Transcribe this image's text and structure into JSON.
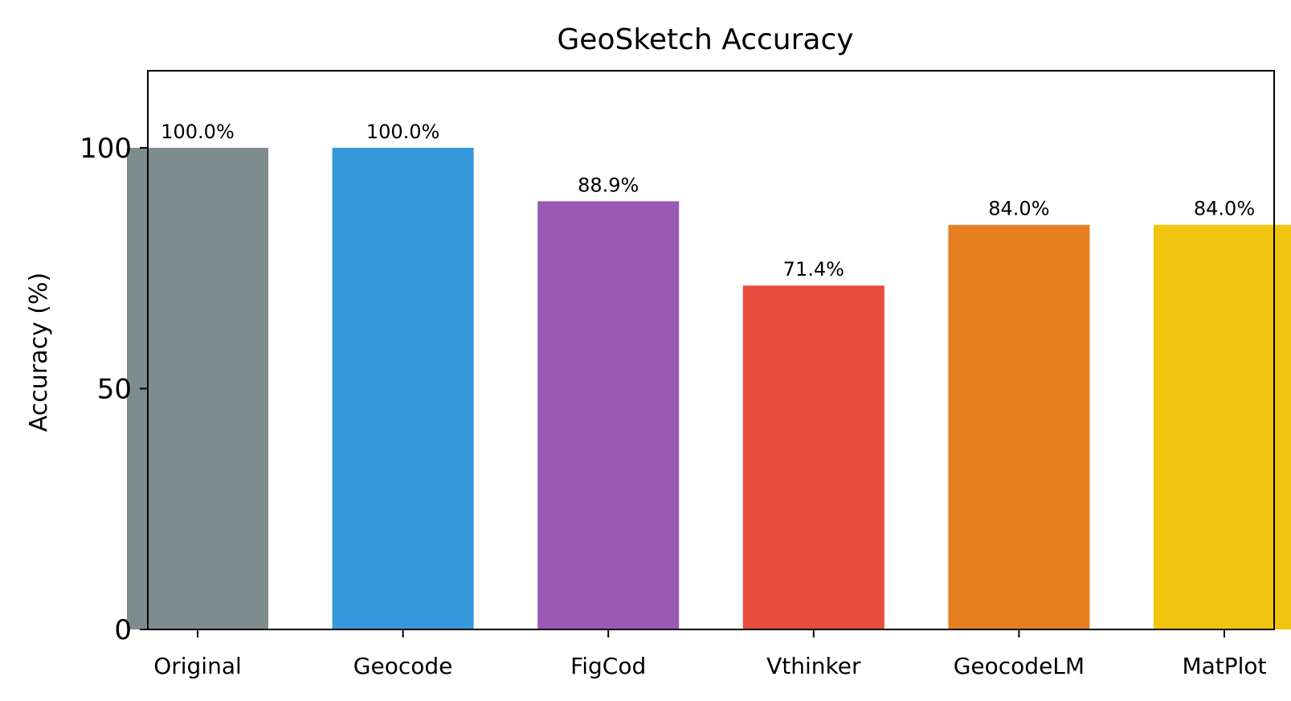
{
  "chart_data": {
    "type": "bar",
    "title": "GeoSketch Accuracy",
    "xlabel": "",
    "ylabel": "Accuracy (%)",
    "ylim": [
      0,
      116
    ],
    "yticks": [
      0,
      50,
      100
    ],
    "categories": [
      "Original",
      "Geocode",
      "FigCod",
      "Vthinker",
      "GeocodeLM",
      "MatPlot"
    ],
    "values": [
      100.0,
      100.0,
      88.9,
      71.4,
      84.0,
      84.0
    ],
    "value_labels": [
      "100.0%",
      "100.0%",
      "88.9%",
      "71.4%",
      "84.0%",
      "84.0%"
    ],
    "colors": [
      "#7f8c8d",
      "#3498db",
      "#9b59b6",
      "#e74c3c",
      "#e67e22",
      "#f1c40f"
    ],
    "grid": false,
    "legend": "none"
  }
}
